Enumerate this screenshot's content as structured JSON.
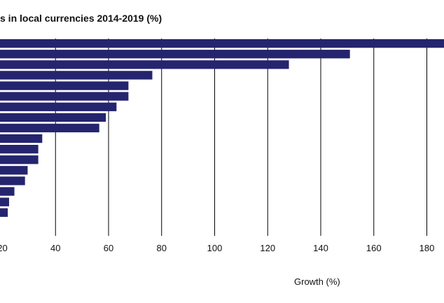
{
  "chart_data": {
    "type": "bar",
    "orientation": "horizontal",
    "title": "s in local currencies 2014-2019 (%)",
    "xlabel": "Growth (%)",
    "ylabel": "",
    "xlim": [
      20,
      190
    ],
    "ticks": [
      20,
      40,
      60,
      80,
      100,
      120,
      140,
      160,
      180
    ],
    "grid": "vertical",
    "bar_color": "#25246e",
    "values": [
      190,
      151,
      128,
      76.5,
      67.5,
      67.5,
      63,
      59,
      56.5,
      35,
      33.5,
      33.5,
      29.5,
      28.5,
      24.5,
      22.5,
      22
    ]
  }
}
